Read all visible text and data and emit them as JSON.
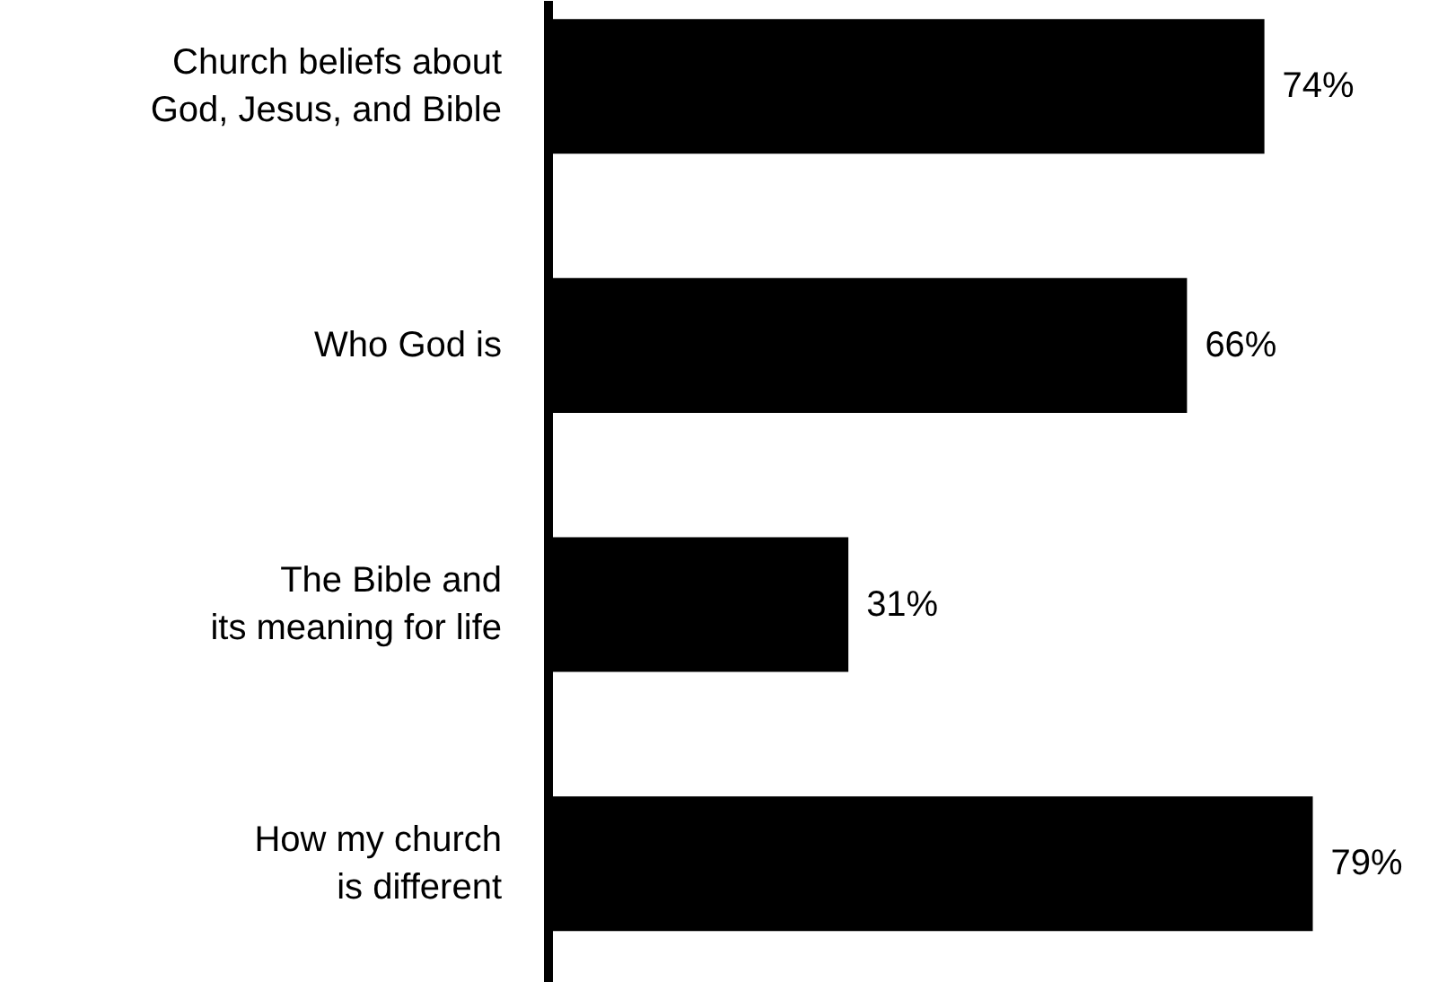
{
  "chart_data": {
    "type": "bar",
    "orientation": "horizontal",
    "categories": [
      "Church beliefs about\nGod, Jesus, and Bible",
      "Who God is",
      "The Bible and\nits meaning for life",
      "How my church\nis different"
    ],
    "values": [
      74,
      66,
      31,
      79
    ],
    "value_labels": [
      "74%",
      "66%",
      "31%",
      "79%"
    ],
    "color": "#000000",
    "tick_labels": "y"
  }
}
